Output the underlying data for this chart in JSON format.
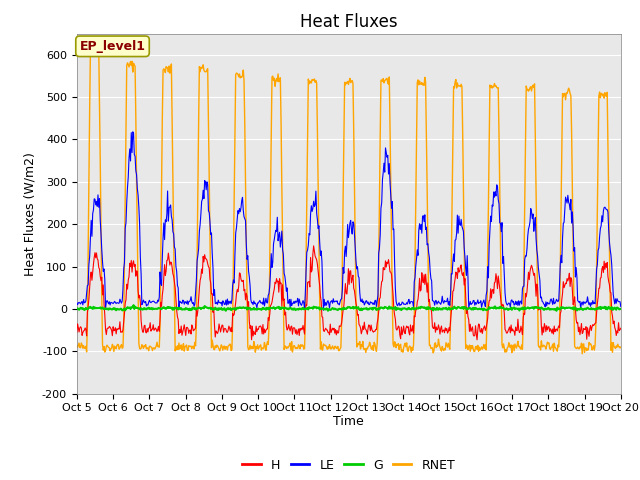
{
  "title": "Heat Fluxes",
  "ylabel": "Heat Fluxes (W/m2)",
  "xlabel": "Time",
  "ylim": [
    -200,
    650
  ],
  "xlim": [
    0,
    15
  ],
  "xtick_labels": [
    "Oct 5",
    "Oct 6",
    "Oct 7",
    "Oct 8",
    "Oct 9",
    "Oct 10",
    "Oct 11",
    "Oct 12",
    "Oct 13",
    "Oct 14",
    "Oct 15",
    "Oct 16",
    "Oct 17",
    "Oct 18",
    "Oct 19",
    "Oct 20"
  ],
  "ytick_values": [
    -200,
    -100,
    0,
    100,
    200,
    300,
    400,
    500,
    600
  ],
  "colors": {
    "H": "#ff0000",
    "LE": "#0000ff",
    "G": "#00cc00",
    "RNET": "#ffa500"
  },
  "annotation_text": "EP_level1",
  "annotation_color": "#8b0000",
  "annotation_bg": "#ffffcc",
  "annotation_edge": "#999900",
  "background_color": "#e8e8e8",
  "title_fontsize": 12,
  "label_fontsize": 9,
  "tick_fontsize": 8
}
